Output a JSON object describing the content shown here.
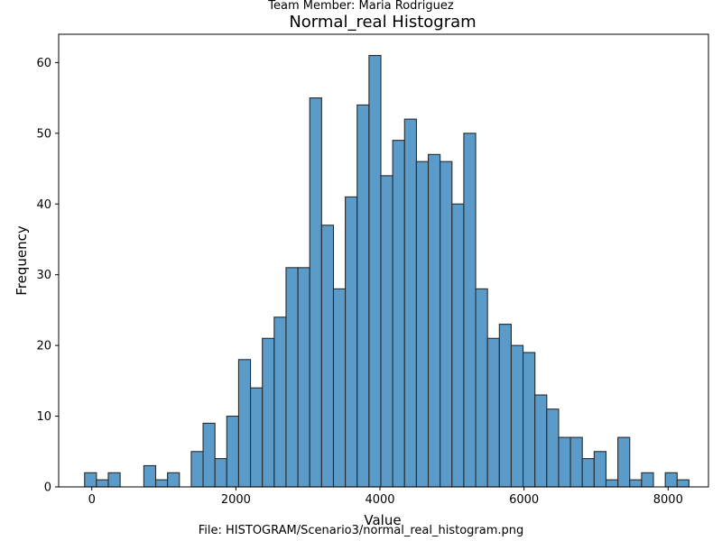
{
  "header": {
    "team_member": "Team Member: Maria Rodriguez"
  },
  "footer": {
    "file": "File: HISTOGRAM/Scenario3/normal_real_histogram.png"
  },
  "chart_data": {
    "type": "bar",
    "title": "Normal_real Histogram",
    "xlabel": "Value",
    "ylabel": "Frequency",
    "bar_color": "#5b9bc9",
    "edge_color": "#2a2a2a",
    "xlim": [
      -460,
      8560
    ],
    "ylim": [
      0,
      64
    ],
    "xticks": [
      0,
      2000,
      4000,
      6000,
      8000
    ],
    "yticks": [
      0,
      10,
      20,
      30,
      40,
      50,
      60
    ],
    "bin_start": -100,
    "bin_width": 164.5,
    "values": [
      2,
      1,
      2,
      0,
      0,
      3,
      1,
      2,
      0,
      5,
      9,
      4,
      10,
      18,
      14,
      21,
      24,
      31,
      31,
      55,
      37,
      28,
      41,
      54,
      61,
      44,
      49,
      52,
      46,
      47,
      46,
      40,
      50,
      28,
      21,
      23,
      20,
      19,
      13,
      11,
      7,
      7,
      4,
      5,
      1,
      7,
      1,
      2,
      0,
      2,
      1
    ],
    "grid": false,
    "legend": "none"
  }
}
